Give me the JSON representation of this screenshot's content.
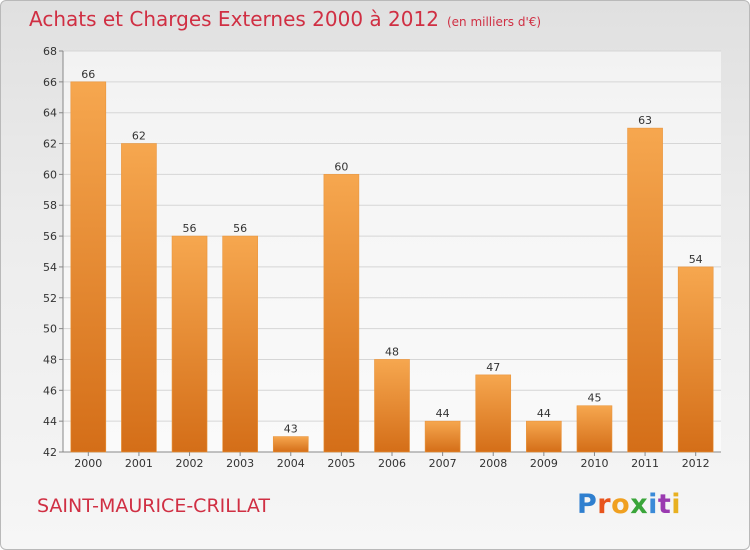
{
  "title": "Achats et Charges Externes 2000 à 2012",
  "unit_note": "(en milliers d'€)",
  "location": "SAINT-MAURICE-CRILLAT",
  "brand": {
    "letters": [
      "P",
      "r",
      "o",
      "x",
      "i",
      "t",
      "i"
    ],
    "colors": [
      "#2f7fcf",
      "#e8541d",
      "#f0a020",
      "#3aa53a",
      "#3a8ad8",
      "#9a3ab0",
      "#e8b020"
    ]
  },
  "colors": {
    "title": "#d02f43",
    "bar_light": "#f6a74f",
    "bar_dark": "#d46e18",
    "grid": "#d6d6d6"
  },
  "chart_data": {
    "type": "bar",
    "categories": [
      "2000",
      "2001",
      "2002",
      "2003",
      "2004",
      "2005",
      "2006",
      "2007",
      "2008",
      "2009",
      "2010",
      "2011",
      "2012"
    ],
    "values": [
      66,
      62,
      56,
      56,
      43,
      60,
      48,
      44,
      47,
      44,
      45,
      63,
      54
    ],
    "ylim": [
      42,
      68
    ],
    "yticks": [
      42,
      44,
      46,
      48,
      50,
      52,
      54,
      56,
      58,
      60,
      62,
      64,
      66,
      68
    ],
    "grid": true,
    "data_labels": true
  }
}
